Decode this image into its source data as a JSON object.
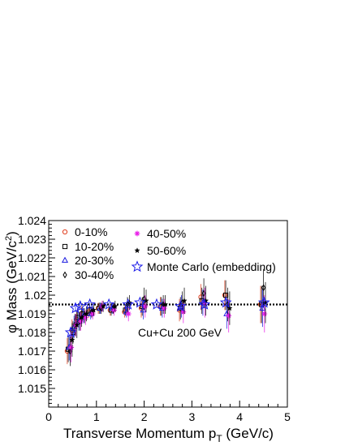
{
  "chart_data": {
    "type": "scatter",
    "xlabel": "Transverse Momentum p",
    "xlabel_sub": "T",
    "xlabel_unit": " (GeV/c)",
    "ylabel": "φ Mass (GeV/c",
    "ylabel_sup": "2",
    "ylabel_end": ")",
    "xlim": [
      0,
      5
    ],
    "ylim": [
      1.014,
      1.024
    ],
    "x_ticks": [
      "0",
      "1",
      "2",
      "3",
      "4",
      "5"
    ],
    "y_ticks": [
      "1.015",
      "1.016",
      "1.017",
      "1.018",
      "1.019",
      "1.02",
      "1.021",
      "1.022",
      "1.023",
      "1.024"
    ],
    "reference_line": 1.0195,
    "annotation": "Cu+Cu 200 GeV",
    "grid": false,
    "legend_position": "top-left",
    "series": [
      {
        "name": "0-10%",
        "marker": "circle",
        "color": "#e03c1c",
        "points": [
          {
            "x": 0.45,
            "y": 1.017,
            "err": 0.0007
          },
          {
            "x": 0.55,
            "y": 1.0181,
            "err": 0.0006
          },
          {
            "x": 0.65,
            "y": 1.0187,
            "err": 0.0005
          },
          {
            "x": 0.75,
            "y": 1.019,
            "err": 0.0004
          },
          {
            "x": 0.9,
            "y": 1.0191,
            "err": 0.0003
          },
          {
            "x": 1.1,
            "y": 1.0193,
            "err": 0.0003
          },
          {
            "x": 1.35,
            "y": 1.0192,
            "err": 0.0003
          },
          {
            "x": 1.65,
            "y": 1.0191,
            "err": 0.0003
          },
          {
            "x": 2.0,
            "y": 1.0193,
            "err": 0.0005
          },
          {
            "x": 2.4,
            "y": 1.0194,
            "err": 0.0005
          },
          {
            "x": 2.8,
            "y": 1.0192,
            "err": 0.0006
          },
          {
            "x": 3.25,
            "y": 1.0199,
            "err": 0.0007
          },
          {
            "x": 3.75,
            "y": 1.02,
            "err": 0.0008
          },
          {
            "x": 4.5,
            "y": 1.0195,
            "err": 0.001
          }
        ]
      },
      {
        "name": "10-20%",
        "marker": "square",
        "color": "#000000",
        "points": [
          {
            "x": 0.45,
            "y": 1.0171,
            "err": 0.0007
          },
          {
            "x": 0.55,
            "y": 1.018,
            "err": 0.0006
          },
          {
            "x": 0.65,
            "y": 1.0188,
            "err": 0.0005
          },
          {
            "x": 0.75,
            "y": 1.019,
            "err": 0.0004
          },
          {
            "x": 0.9,
            "y": 1.0192,
            "err": 0.0003
          },
          {
            "x": 1.1,
            "y": 1.0193,
            "err": 0.0003
          },
          {
            "x": 1.35,
            "y": 1.0192,
            "err": 0.0003
          },
          {
            "x": 1.65,
            "y": 1.0192,
            "err": 0.0003
          },
          {
            "x": 2.0,
            "y": 1.0194,
            "err": 0.0005
          },
          {
            "x": 2.4,
            "y": 1.0194,
            "err": 0.0005
          },
          {
            "x": 2.8,
            "y": 1.0193,
            "err": 0.0006
          },
          {
            "x": 3.25,
            "y": 1.0197,
            "err": 0.0007
          },
          {
            "x": 3.75,
            "y": 1.02,
            "err": 0.0008
          },
          {
            "x": 4.5,
            "y": 1.0195,
            "err": 0.001
          }
        ]
      },
      {
        "name": "20-30%",
        "marker": "triangle",
        "color": "#1c1ce0",
        "points": [
          {
            "x": 0.45,
            "y": 1.0172,
            "err": 0.0007
          },
          {
            "x": 0.55,
            "y": 1.0183,
            "err": 0.0006
          },
          {
            "x": 0.65,
            "y": 1.0186,
            "err": 0.0005
          },
          {
            "x": 0.75,
            "y": 1.0189,
            "err": 0.0004
          },
          {
            "x": 0.9,
            "y": 1.019,
            "err": 0.0003
          },
          {
            "x": 1.1,
            "y": 1.0193,
            "err": 0.0003
          },
          {
            "x": 1.35,
            "y": 1.0193,
            "err": 0.0003
          },
          {
            "x": 1.65,
            "y": 1.0191,
            "err": 0.0003
          },
          {
            "x": 2.0,
            "y": 1.0192,
            "err": 0.0005
          },
          {
            "x": 2.4,
            "y": 1.0193,
            "err": 0.0005
          },
          {
            "x": 2.8,
            "y": 1.0194,
            "err": 0.0006
          },
          {
            "x": 3.25,
            "y": 1.0196,
            "err": 0.0007
          },
          {
            "x": 3.75,
            "y": 1.019,
            "err": 0.0008
          },
          {
            "x": 4.5,
            "y": 1.0193,
            "err": 0.001
          }
        ]
      },
      {
        "name": "30-40%",
        "marker": "diamond",
        "color": "#000000",
        "points": [
          {
            "x": 0.45,
            "y": 1.017,
            "err": 0.0008
          },
          {
            "x": 0.55,
            "y": 1.0184,
            "err": 0.0006
          },
          {
            "x": 0.65,
            "y": 1.0186,
            "err": 0.0005
          },
          {
            "x": 0.75,
            "y": 1.0189,
            "err": 0.0004
          },
          {
            "x": 0.9,
            "y": 1.0191,
            "err": 0.0003
          },
          {
            "x": 1.1,
            "y": 1.0193,
            "err": 0.0003
          },
          {
            "x": 1.35,
            "y": 1.0193,
            "err": 0.0003
          },
          {
            "x": 1.65,
            "y": 1.0195,
            "err": 0.0004
          },
          {
            "x": 2.0,
            "y": 1.0198,
            "err": 0.0006
          },
          {
            "x": 2.4,
            "y": 1.0195,
            "err": 0.0005
          },
          {
            "x": 2.8,
            "y": 1.0196,
            "err": 0.0006
          },
          {
            "x": 3.25,
            "y": 1.0201,
            "err": 0.0008
          },
          {
            "x": 3.75,
            "y": 1.0195,
            "err": 0.0009
          },
          {
            "x": 4.5,
            "y": 1.0204,
            "err": 0.001
          }
        ]
      },
      {
        "name": "40-50%",
        "marker": "cross",
        "color": "#e81ce8",
        "points": [
          {
            "x": 0.45,
            "y": 1.0172,
            "err": 0.0008
          },
          {
            "x": 0.55,
            "y": 1.0184,
            "err": 0.0006
          },
          {
            "x": 0.65,
            "y": 1.0186,
            "err": 0.0005
          },
          {
            "x": 0.75,
            "y": 1.0188,
            "err": 0.0004
          },
          {
            "x": 0.9,
            "y": 1.019,
            "err": 0.0003
          },
          {
            "x": 1.1,
            "y": 1.0194,
            "err": 0.0003
          },
          {
            "x": 1.35,
            "y": 1.0192,
            "err": 0.0003
          },
          {
            "x": 1.65,
            "y": 1.019,
            "err": 0.0004
          },
          {
            "x": 2.0,
            "y": 1.0194,
            "err": 0.0006
          },
          {
            "x": 2.4,
            "y": 1.0193,
            "err": 0.0005
          },
          {
            "x": 2.8,
            "y": 1.0191,
            "err": 0.0006
          },
          {
            "x": 3.25,
            "y": 1.0196,
            "err": 0.0008
          },
          {
            "x": 3.75,
            "y": 1.0189,
            "err": 0.0009
          },
          {
            "x": 4.5,
            "y": 1.019,
            "err": 0.001
          }
        ]
      },
      {
        "name": "50-60%",
        "marker": "star-small",
        "color": "#000000",
        "points": [
          {
            "x": 0.45,
            "y": 1.0176,
            "err": 0.0009
          },
          {
            "x": 0.55,
            "y": 1.0184,
            "err": 0.0007
          },
          {
            "x": 0.65,
            "y": 1.0188,
            "err": 0.0005
          },
          {
            "x": 0.75,
            "y": 1.019,
            "err": 0.0004
          },
          {
            "x": 0.9,
            "y": 1.0192,
            "err": 0.0003
          },
          {
            "x": 1.1,
            "y": 1.0194,
            "err": 0.0003
          },
          {
            "x": 1.35,
            "y": 1.0194,
            "err": 0.0003
          },
          {
            "x": 1.65,
            "y": 1.0196,
            "err": 0.0004
          },
          {
            "x": 2.0,
            "y": 1.0197,
            "err": 0.0006
          },
          {
            "x": 2.4,
            "y": 1.0195,
            "err": 0.0005
          },
          {
            "x": 2.8,
            "y": 1.0197,
            "err": 0.0007
          },
          {
            "x": 3.25,
            "y": 1.0197,
            "err": 0.0008
          },
          {
            "x": 3.75,
            "y": 1.0193,
            "err": 0.0009
          },
          {
            "x": 4.5,
            "y": 1.0196,
            "err": 0.0011
          }
        ]
      },
      {
        "name": "Monte Carlo (embedding)",
        "marker": "star-open",
        "color": "#1c1ce8",
        "points": [
          {
            "x": 0.4,
            "y": 1.018,
            "err": 0.0003
          },
          {
            "x": 0.5,
            "y": 1.0193,
            "err": 0.0002
          },
          {
            "x": 0.6,
            "y": 1.0194,
            "err": 0.0002
          },
          {
            "x": 0.8,
            "y": 1.0195,
            "err": 0.0001
          },
          {
            "x": 1.2,
            "y": 1.0195,
            "err": 0.0001
          },
          {
            "x": 1.6,
            "y": 1.0195,
            "err": 0.0001
          },
          {
            "x": 1.85,
            "y": 1.0196,
            "err": 0.0001
          },
          {
            "x": 2.2,
            "y": 1.0195,
            "err": 0.0001
          },
          {
            "x": 2.7,
            "y": 1.0194,
            "err": 0.0001
          },
          {
            "x": 3.2,
            "y": 1.0195,
            "err": 0.0002
          },
          {
            "x": 3.65,
            "y": 1.0196,
            "err": 0.0002
          },
          {
            "x": 4.45,
            "y": 1.0196,
            "err": 0.0002
          }
        ]
      }
    ]
  }
}
